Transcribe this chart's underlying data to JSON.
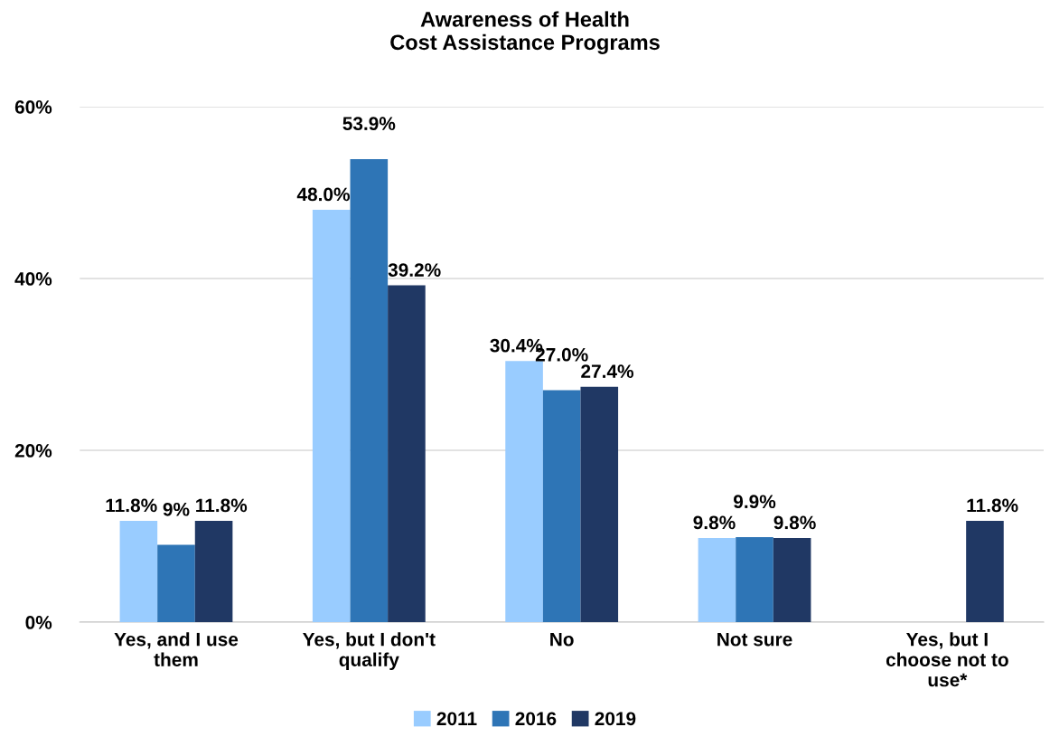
{
  "chart_data": {
    "type": "bar",
    "title": "Awareness of Health\nCost Assistance Programs",
    "categories": [
      "Yes, and I use\nthem",
      "Yes, but I don't\nqualify",
      "No",
      "Not sure",
      "Yes, but I\nchoose not to\nuse*"
    ],
    "series": [
      {
        "name": "2011",
        "color": "#99ccff",
        "values": [
          11.8,
          48.0,
          30.4,
          9.8,
          null
        ],
        "value_labels": [
          "11.8%",
          "48.0%",
          "30.4%",
          "9.8%",
          null
        ]
      },
      {
        "name": "2016",
        "color": "#2e75b6",
        "values": [
          9,
          53.9,
          27.0,
          9.9,
          null
        ],
        "value_labels": [
          "9%",
          "53.9%",
          "27.0%",
          "9.9%",
          null
        ]
      },
      {
        "name": "2019",
        "color": "#203864",
        "values": [
          11.8,
          39.2,
          27.4,
          9.8,
          11.8
        ],
        "value_labels": [
          "11.8%",
          "39.2%",
          "27.4%",
          "9.8%",
          "11.8%"
        ]
      }
    ],
    "ylim": [
      0,
      60
    ],
    "yticks": [
      {
        "value": 0,
        "label": "0%"
      },
      {
        "value": 20,
        "label": "20%"
      },
      {
        "value": 40,
        "label": "40%"
      },
      {
        "value": 60,
        "label": "60%"
      }
    ],
    "grid": "y",
    "legend": "bottom"
  }
}
